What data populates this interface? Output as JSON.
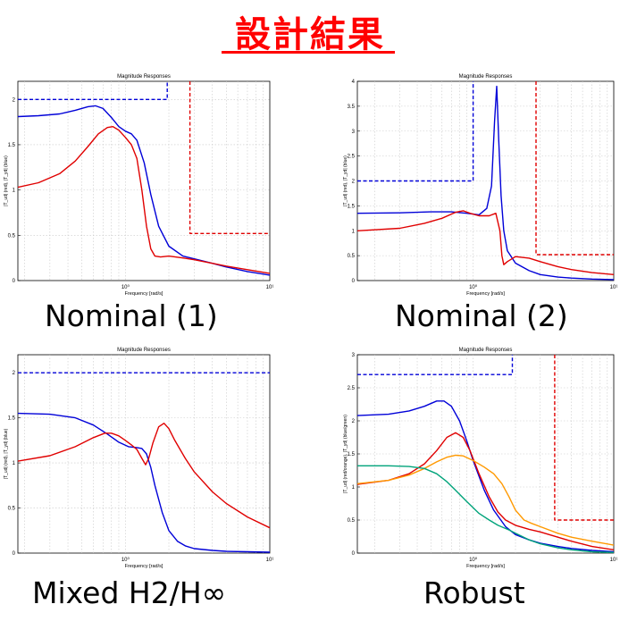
{
  "page": {
    "title": "設計結果",
    "colors": {
      "title": "#ff0000",
      "blue": "#0000d8",
      "red": "#e00000",
      "orange": "#ff9900",
      "green": "#00a37a",
      "grid": "#c8c8c8"
    }
  },
  "captions": [
    "Nominal (1)",
    "Nominal (2)",
    "Mixed H2/H∞",
    "Robust"
  ],
  "chart_data": [
    {
      "type": "line",
      "title": "Magnitude Responses",
      "xlabel": "Frequency [rad/s]",
      "ylabel": "|T_ud| (red), |T_yd| (blue)",
      "xscale": "log",
      "xlim": [
        0.18,
        10
      ],
      "ylim": [
        0,
        2.2
      ],
      "x_ticks": [
        {
          "v": 1,
          "label": "10⁰"
        },
        {
          "v": 10,
          "label": "10¹"
        }
      ],
      "y_ticks": [
        0,
        0.5,
        1,
        1.5,
        2
      ],
      "grid": true,
      "series": [
        {
          "color": "blue",
          "style": "solid",
          "x": [
            0.18,
            0.25,
            0.35,
            0.45,
            0.55,
            0.62,
            0.7,
            0.8,
            0.9,
            1.0,
            1.1,
            1.2,
            1.35,
            1.5,
            1.7,
            2.0,
            2.5,
            3,
            4,
            5,
            7,
            10
          ],
          "y": [
            1.81,
            1.82,
            1.84,
            1.88,
            1.92,
            1.93,
            1.9,
            1.8,
            1.7,
            1.65,
            1.62,
            1.55,
            1.3,
            0.95,
            0.6,
            0.38,
            0.27,
            0.24,
            0.19,
            0.15,
            0.1,
            0.06
          ]
        },
        {
          "color": "red",
          "style": "solid",
          "x": [
            0.18,
            0.25,
            0.35,
            0.45,
            0.55,
            0.65,
            0.75,
            0.82,
            0.9,
            1.0,
            1.1,
            1.2,
            1.3,
            1.4,
            1.5,
            1.6,
            1.75,
            2.0,
            2.5,
            3,
            4,
            5,
            7,
            10
          ],
          "y": [
            1.03,
            1.08,
            1.18,
            1.32,
            1.48,
            1.62,
            1.69,
            1.7,
            1.66,
            1.58,
            1.5,
            1.35,
            1.0,
            0.6,
            0.35,
            0.27,
            0.26,
            0.27,
            0.25,
            0.23,
            0.19,
            0.16,
            0.12,
            0.08
          ]
        },
        {
          "color": "blue",
          "style": "dashed",
          "x": [
            0.18,
            1.95,
            1.95
          ],
          "y": [
            2.0,
            2.0,
            2.2
          ]
        },
        {
          "color": "red",
          "style": "dashed",
          "x": [
            2.8,
            2.8,
            10
          ],
          "y": [
            2.2,
            0.52,
            0.52
          ]
        }
      ]
    },
    {
      "type": "line",
      "title": "Magnitude Responses",
      "xlabel": "Frequency [rad/s]",
      "ylabel": "|T_ud| (red), |T_yd| (blue)",
      "xscale": "log",
      "xlim": [
        0.15,
        10
      ],
      "ylim": [
        0,
        4
      ],
      "x_ticks": [
        {
          "v": 1,
          "label": "10⁰"
        },
        {
          "v": 10,
          "label": "10¹"
        }
      ],
      "y_ticks": [
        0,
        0.5,
        1,
        1.5,
        2,
        2.5,
        3,
        3.5,
        4
      ],
      "grid": true,
      "series": [
        {
          "color": "blue",
          "style": "solid",
          "x": [
            0.15,
            0.3,
            0.5,
            0.7,
            0.9,
            1.1,
            1.25,
            1.35,
            1.42,
            1.47,
            1.52,
            1.58,
            1.65,
            1.75,
            2.0,
            2.5,
            3,
            4,
            5,
            7,
            10
          ],
          "y": [
            1.35,
            1.36,
            1.38,
            1.38,
            1.35,
            1.32,
            1.45,
            1.9,
            3.2,
            3.9,
            2.8,
            1.7,
            1.0,
            0.6,
            0.35,
            0.2,
            0.12,
            0.07,
            0.05,
            0.03,
            0.02
          ]
        },
        {
          "color": "red",
          "style": "solid",
          "x": [
            0.15,
            0.3,
            0.45,
            0.6,
            0.75,
            0.85,
            0.95,
            1.1,
            1.3,
            1.45,
            1.55,
            1.6,
            1.65,
            1.75,
            2.0,
            2.5,
            3,
            4,
            5,
            7,
            10
          ],
          "y": [
            1.0,
            1.05,
            1.15,
            1.25,
            1.37,
            1.4,
            1.35,
            1.3,
            1.3,
            1.35,
            1.0,
            0.5,
            0.32,
            0.38,
            0.48,
            0.45,
            0.38,
            0.28,
            0.22,
            0.16,
            0.12
          ]
        },
        {
          "color": "blue",
          "style": "dashed",
          "x": [
            0.15,
            1.0,
            1.0
          ],
          "y": [
            2.0,
            2.0,
            4
          ]
        },
        {
          "color": "red",
          "style": "dashed",
          "x": [
            2.8,
            2.8,
            10
          ],
          "y": [
            4,
            0.52,
            0.52
          ]
        }
      ]
    },
    {
      "type": "line",
      "title": "Magnitude Responses",
      "xlabel": "Frequency [rad/s]",
      "ylabel": "|T_ud| (red), |T_yd| (blue)",
      "xscale": "log",
      "xlim": [
        0.18,
        10
      ],
      "ylim": [
        0,
        2.2
      ],
      "x_ticks": [
        {
          "v": 1,
          "label": "10⁰"
        },
        {
          "v": 10,
          "label": "10¹"
        }
      ],
      "y_ticks": [
        0,
        0.5,
        1,
        1.5,
        2
      ],
      "grid": true,
      "series": [
        {
          "color": "blue",
          "style": "solid",
          "x": [
            0.18,
            0.3,
            0.45,
            0.6,
            0.75,
            0.9,
            1.05,
            1.2,
            1.3,
            1.4,
            1.5,
            1.6,
            1.8,
            2.0,
            2.3,
            2.6,
            3,
            4,
            5,
            7,
            10
          ],
          "y": [
            1.55,
            1.54,
            1.5,
            1.42,
            1.32,
            1.23,
            1.18,
            1.17,
            1.16,
            1.1,
            0.95,
            0.75,
            0.45,
            0.25,
            0.13,
            0.08,
            0.05,
            0.03,
            0.02,
            0.015,
            0.01
          ]
        },
        {
          "color": "red",
          "style": "solid",
          "x": [
            0.18,
            0.3,
            0.45,
            0.6,
            0.72,
            0.8,
            0.9,
            1.0,
            1.1,
            1.2,
            1.3,
            1.38,
            1.45,
            1.55,
            1.7,
            1.85,
            2.0,
            2.2,
            2.6,
            3,
            4,
            5,
            7,
            10
          ],
          "y": [
            1.02,
            1.08,
            1.18,
            1.28,
            1.33,
            1.33,
            1.3,
            1.25,
            1.2,
            1.15,
            1.05,
            0.98,
            1.05,
            1.22,
            1.4,
            1.44,
            1.38,
            1.25,
            1.05,
            0.9,
            0.68,
            0.55,
            0.4,
            0.28
          ]
        },
        {
          "color": "blue",
          "style": "dashed",
          "x": [
            0.18,
            10
          ],
          "y": [
            2.0,
            2.0
          ]
        }
      ]
    },
    {
      "type": "line",
      "title": "Magnitude Responses",
      "xlabel": "Frequency [rad/s]",
      "ylabel": "|T_ud| (red/orange), |T_yd| (blue/green)",
      "xscale": "log",
      "xlim": [
        0.15,
        10
      ],
      "ylim": [
        0,
        3
      ],
      "x_ticks": [
        {
          "v": 1,
          "label": "10⁰"
        },
        {
          "v": 10,
          "label": "10¹"
        }
      ],
      "y_ticks": [
        0,
        0.5,
        1,
        1.5,
        2,
        2.5,
        3
      ],
      "grid": true,
      "series": [
        {
          "color": "blue",
          "style": "solid",
          "x": [
            0.15,
            0.25,
            0.35,
            0.45,
            0.55,
            0.62,
            0.7,
            0.8,
            0.9,
            1.0,
            1.2,
            1.4,
            1.7,
            2.0,
            2.5,
            3,
            4,
            5,
            7,
            10
          ],
          "y": [
            2.08,
            2.1,
            2.15,
            2.22,
            2.3,
            2.3,
            2.22,
            2.0,
            1.7,
            1.4,
            0.95,
            0.65,
            0.4,
            0.28,
            0.2,
            0.15,
            0.1,
            0.07,
            0.04,
            0.02
          ]
        },
        {
          "color": "red",
          "style": "solid",
          "x": [
            0.15,
            0.25,
            0.35,
            0.45,
            0.55,
            0.65,
            0.75,
            0.85,
            0.95,
            1.1,
            1.3,
            1.5,
            1.7,
            2.0,
            2.5,
            3,
            4,
            5,
            7,
            10
          ],
          "y": [
            1.04,
            1.1,
            1.2,
            1.35,
            1.55,
            1.75,
            1.82,
            1.75,
            1.55,
            1.2,
            0.85,
            0.62,
            0.5,
            0.42,
            0.36,
            0.32,
            0.24,
            0.18,
            0.1,
            0.05
          ]
        },
        {
          "color": "orange",
          "style": "solid",
          "x": [
            0.15,
            0.25,
            0.35,
            0.45,
            0.55,
            0.65,
            0.75,
            0.85,
            1.0,
            1.2,
            1.4,
            1.6,
            1.8,
            2.0,
            2.3,
            2.6,
            3,
            4,
            5,
            7,
            10
          ],
          "y": [
            1.05,
            1.1,
            1.18,
            1.28,
            1.38,
            1.45,
            1.48,
            1.47,
            1.4,
            1.3,
            1.2,
            1.05,
            0.85,
            0.65,
            0.5,
            0.45,
            0.4,
            0.3,
            0.24,
            0.18,
            0.12
          ]
        },
        {
          "color": "green",
          "style": "solid",
          "x": [
            0.15,
            0.25,
            0.35,
            0.45,
            0.55,
            0.65,
            0.75,
            0.9,
            1.1,
            1.3,
            1.5,
            1.8,
            2.0,
            2.5,
            3,
            4,
            5,
            7,
            10
          ],
          "y": [
            1.32,
            1.32,
            1.31,
            1.28,
            1.2,
            1.08,
            0.95,
            0.78,
            0.6,
            0.5,
            0.42,
            0.35,
            0.3,
            0.2,
            0.14,
            0.08,
            0.05,
            0.02,
            0.01
          ]
        },
        {
          "color": "blue",
          "style": "dashed",
          "x": [
            0.15,
            1.9,
            1.9
          ],
          "y": [
            2.7,
            2.7,
            3
          ]
        },
        {
          "color": "red",
          "style": "dashed",
          "x": [
            3.8,
            3.8,
            10
          ],
          "y": [
            3,
            0.5,
            0.5
          ]
        }
      ]
    }
  ]
}
